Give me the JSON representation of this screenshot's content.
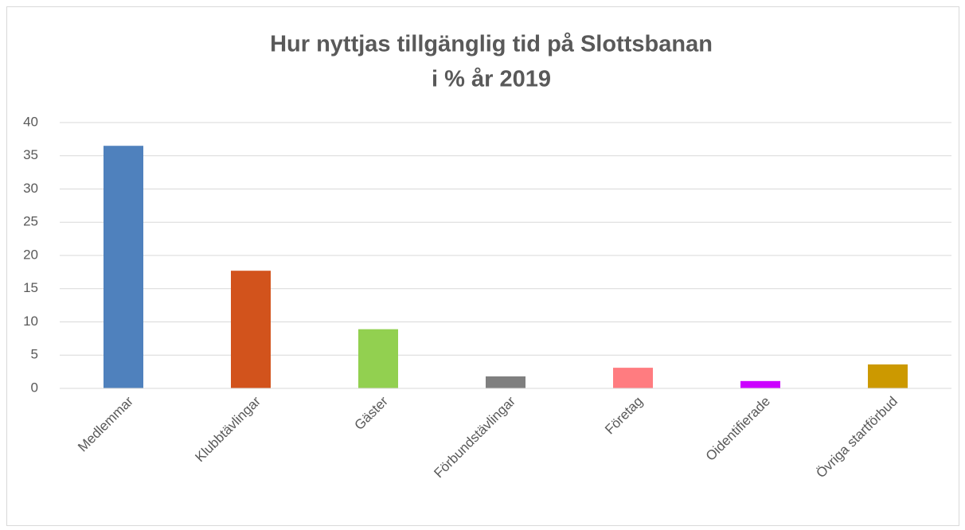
{
  "chart_data": {
    "type": "bar",
    "title": [
      "Hur nyttjas tillgänglig tid på Slottsbanan",
      "i % år 2019"
    ],
    "categories": [
      "Medlemmar",
      "Klubbtävlingar",
      "Gäster",
      "Förbundstävlingar",
      "Företag",
      "Oidentifierade",
      "Övriga startförbud"
    ],
    "values": [
      36.5,
      17.7,
      8.9,
      1.8,
      3.1,
      1.1,
      3.6
    ],
    "colors": [
      "#4f81bd",
      "#d2531c",
      "#92d050",
      "#7f7f7f",
      "#ff7c80",
      "#cc00ff",
      "#cc9900"
    ],
    "ylim": [
      0,
      40
    ],
    "yticks": [
      0,
      5,
      10,
      15,
      20,
      25,
      30,
      35,
      40
    ],
    "grid": true
  }
}
